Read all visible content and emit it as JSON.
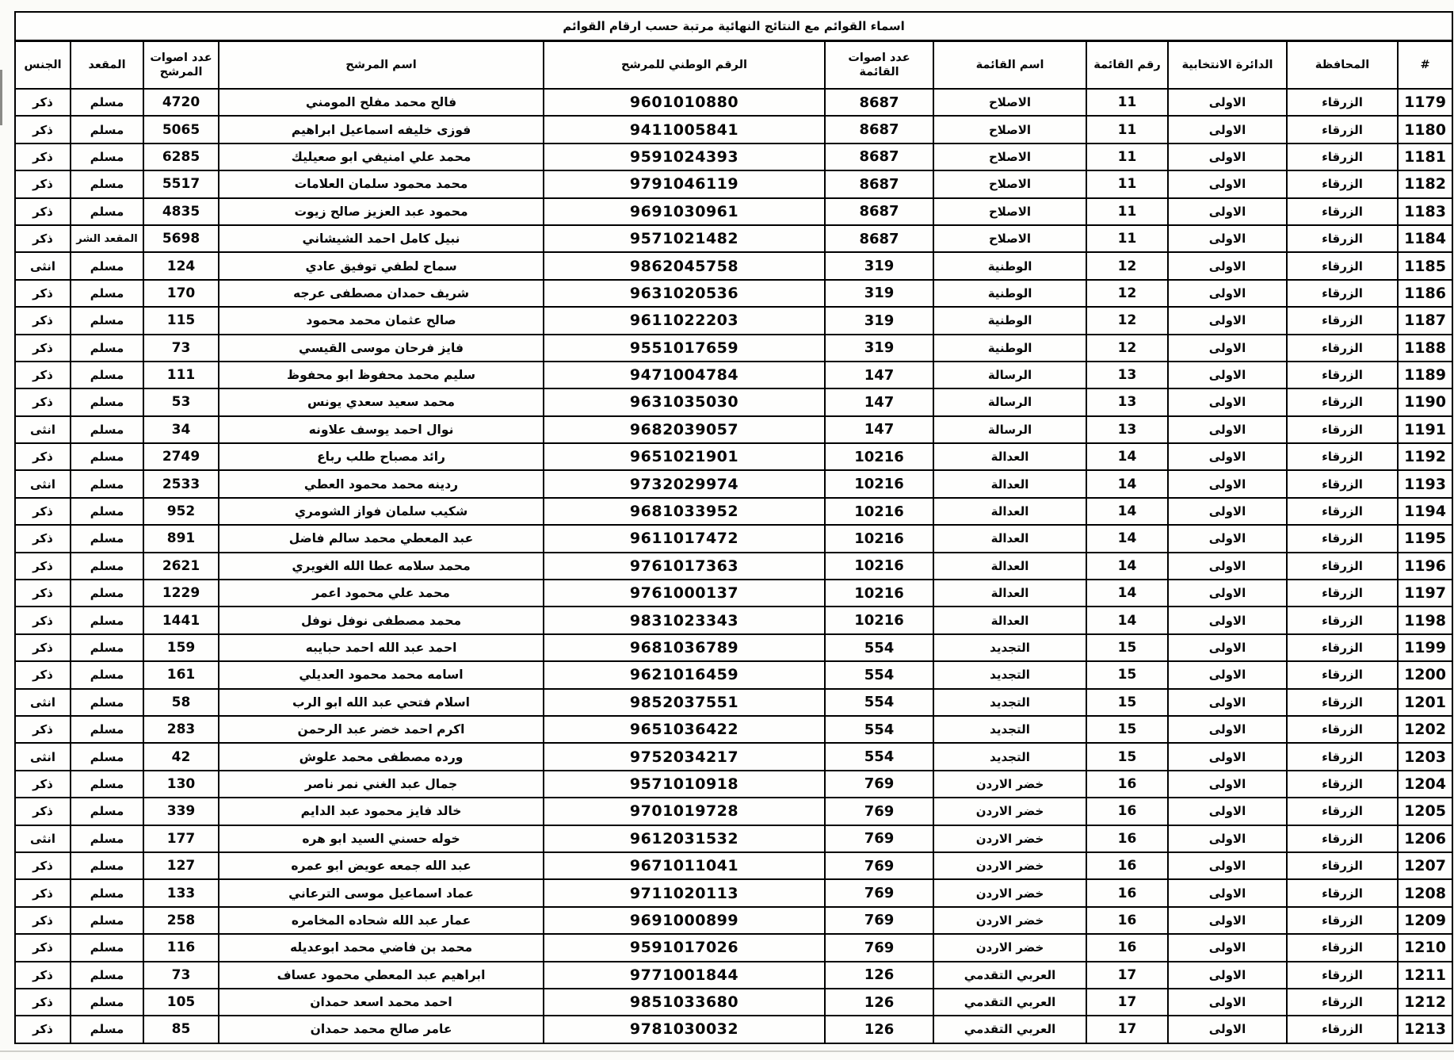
{
  "title": "اسماء القوائم مع النتائج النهائية مرتبة حسب ارقام القوائم",
  "columns": [
    {
      "key": "num",
      "label": "#"
    },
    {
      "key": "governorate",
      "label": "المحافظة"
    },
    {
      "key": "district",
      "label": "الدائرة الانتخابية"
    },
    {
      "key": "list_number",
      "label": "رقم القائمة"
    },
    {
      "key": "list_name",
      "label": "اسم القائمة"
    },
    {
      "key": "list_votes",
      "label": "عدد اصوات القائمة"
    },
    {
      "key": "national_id",
      "label": "الرقم الوطني للمرشح"
    },
    {
      "key": "candidate_name",
      "label": "اسم المرشح"
    },
    {
      "key": "candidate_votes",
      "label": "عدد اصوات المرشح"
    },
    {
      "key": "seat",
      "label": "المقعد"
    },
    {
      "key": "gender",
      "label": "الجنس"
    }
  ],
  "rows": [
    [
      "1179",
      "الزرقاء",
      "الاولى",
      "11",
      "الاصلاح",
      "8687",
      "9601010880",
      "فالح محمد مفلح المومني",
      "4720",
      "مسلم",
      "ذكر"
    ],
    [
      "1180",
      "الزرقاء",
      "الاولى",
      "11",
      "الاصلاح",
      "8687",
      "9411005841",
      "فوزى خليفه اسماعيل ابراهيم",
      "5065",
      "مسلم",
      "ذكر"
    ],
    [
      "1181",
      "الزرقاء",
      "الاولى",
      "11",
      "الاصلاح",
      "8687",
      "9591024393",
      "محمد علي امنيفي ابو صعيليك",
      "6285",
      "مسلم",
      "ذكر"
    ],
    [
      "1182",
      "الزرقاء",
      "الاولى",
      "11",
      "الاصلاح",
      "8687",
      "9791046119",
      "محمد محمود سلمان العلامات",
      "5517",
      "مسلم",
      "ذكر"
    ],
    [
      "1183",
      "الزرقاء",
      "الاولى",
      "11",
      "الاصلاح",
      "8687",
      "9691030961",
      "محمود عبد العزيز صالح زيوت",
      "4835",
      "مسلم",
      "ذكر"
    ],
    [
      "1184",
      "الزرقاء",
      "الاولى",
      "11",
      "الاصلاح",
      "8687",
      "9571021482",
      "نبيل كامل احمد الشيشاني",
      "5698",
      "المقعد الشر",
      "ذكر"
    ],
    [
      "1185",
      "الزرقاء",
      "الاولى",
      "12",
      "الوطنية",
      "319",
      "9862045758",
      "سماح لطفي توفيق عادي",
      "124",
      "مسلم",
      "انثى"
    ],
    [
      "1186",
      "الزرقاء",
      "الاولى",
      "12",
      "الوطنية",
      "319",
      "9631020536",
      "شريف حمدان مصطفى عرجه",
      "170",
      "مسلم",
      "ذكر"
    ],
    [
      "1187",
      "الزرقاء",
      "الاولى",
      "12",
      "الوطنية",
      "319",
      "9611022203",
      "صالح عثمان محمد محمود",
      "115",
      "مسلم",
      "ذكر"
    ],
    [
      "1188",
      "الزرقاء",
      "الاولى",
      "12",
      "الوطنية",
      "319",
      "9551017659",
      "فايز فرحان موسى القيسي",
      "73",
      "مسلم",
      "ذكر"
    ],
    [
      "1189",
      "الزرقاء",
      "الاولى",
      "13",
      "الرسالة",
      "147",
      "9471004784",
      "سليم محمد محفوظ ابو محفوظ",
      "111",
      "مسلم",
      "ذكر"
    ],
    [
      "1190",
      "الزرقاء",
      "الاولى",
      "13",
      "الرسالة",
      "147",
      "9631035030",
      "محمد سعيد سعدي يونس",
      "53",
      "مسلم",
      "ذكر"
    ],
    [
      "1191",
      "الزرقاء",
      "الاولى",
      "13",
      "الرسالة",
      "147",
      "9682039057",
      "نوال احمد يوسف علاونه",
      "34",
      "مسلم",
      "انثى"
    ],
    [
      "1192",
      "الزرقاء",
      "الاولى",
      "14",
      "العدالة",
      "10216",
      "9651021901",
      "رائد مصباح طلب رباع",
      "2749",
      "مسلم",
      "ذكر"
    ],
    [
      "1193",
      "الزرقاء",
      "الاولى",
      "14",
      "العدالة",
      "10216",
      "9732029974",
      "ردينه محمد محمود العطي",
      "2533",
      "مسلم",
      "انثى"
    ],
    [
      "1194",
      "الزرقاء",
      "الاولى",
      "14",
      "العدالة",
      "10216",
      "9681033952",
      "شكيب سلمان فواز الشومري",
      "952",
      "مسلم",
      "ذكر"
    ],
    [
      "1195",
      "الزرقاء",
      "الاولى",
      "14",
      "العدالة",
      "10216",
      "9611017472",
      "عبد المعطي محمد سالم فاضل",
      "891",
      "مسلم",
      "ذكر"
    ],
    [
      "1196",
      "الزرقاء",
      "الاولى",
      "14",
      "العدالة",
      "10216",
      "9761017363",
      "محمد سلامه عطا الله الغويري",
      "2621",
      "مسلم",
      "ذكر"
    ],
    [
      "1197",
      "الزرقاء",
      "الاولى",
      "14",
      "العدالة",
      "10216",
      "9761000137",
      "محمد علي محمود اعمر",
      "1229",
      "مسلم",
      "ذكر"
    ],
    [
      "1198",
      "الزرقاء",
      "الاولى",
      "14",
      "العدالة",
      "10216",
      "9831023343",
      "محمد مصطفى نوفل نوفل",
      "1441",
      "مسلم",
      "ذكر"
    ],
    [
      "1199",
      "الزرقاء",
      "الاولى",
      "15",
      "التجديد",
      "554",
      "9681036789",
      "احمد عبد الله احمد حبايبه",
      "159",
      "مسلم",
      "ذكر"
    ],
    [
      "1200",
      "الزرقاء",
      "الاولى",
      "15",
      "التجديد",
      "554",
      "9621016459",
      "اسامه محمد محمود العديلي",
      "161",
      "مسلم",
      "ذكر"
    ],
    [
      "1201",
      "الزرقاء",
      "الاولى",
      "15",
      "التجديد",
      "554",
      "9852037551",
      "اسلام فتحي عبد الله ابو الرب",
      "58",
      "مسلم",
      "انثى"
    ],
    [
      "1202",
      "الزرقاء",
      "الاولى",
      "15",
      "التجديد",
      "554",
      "9651036422",
      "اكرم احمد خضر عبد الرحمن",
      "283",
      "مسلم",
      "ذكر"
    ],
    [
      "1203",
      "الزرقاء",
      "الاولى",
      "15",
      "التجديد",
      "554",
      "9752034217",
      "ورده مصطفى محمد علوش",
      "42",
      "مسلم",
      "انثى"
    ],
    [
      "1204",
      "الزرقاء",
      "الاولى",
      "16",
      "خضر الاردن",
      "769",
      "9571010918",
      "جمال عبد الغني نمر ناصر",
      "130",
      "مسلم",
      "ذكر"
    ],
    [
      "1205",
      "الزرقاء",
      "الاولى",
      "16",
      "خضر الاردن",
      "769",
      "9701019728",
      "خالد فايز محمود عبد الدايم",
      "339",
      "مسلم",
      "ذكر"
    ],
    [
      "1206",
      "الزرقاء",
      "الاولى",
      "16",
      "خضر الاردن",
      "769",
      "9612031532",
      "خوله حسني السيد ابو هره",
      "177",
      "مسلم",
      "انثى"
    ],
    [
      "1207",
      "الزرقاء",
      "الاولى",
      "16",
      "خضر الاردن",
      "769",
      "9671011041",
      "عبد الله جمعه عويض ابو عمره",
      "127",
      "مسلم",
      "ذكر"
    ],
    [
      "1208",
      "الزرقاء",
      "الاولى",
      "16",
      "خضر الاردن",
      "769",
      "9711020113",
      "عماد اسماعيل موسى الترعاني",
      "133",
      "مسلم",
      "ذكر"
    ],
    [
      "1209",
      "الزرقاء",
      "الاولى",
      "16",
      "خضر الاردن",
      "769",
      "9691000899",
      "عمار عبد الله شحاده المخامره",
      "258",
      "مسلم",
      "ذكر"
    ],
    [
      "1210",
      "الزرقاء",
      "الاولى",
      "16",
      "خضر الاردن",
      "769",
      "9591017026",
      "محمد بن فاضي محمد ابوعديله",
      "116",
      "مسلم",
      "ذكر"
    ],
    [
      "1211",
      "الزرقاء",
      "الاولى",
      "17",
      "العربي التقدمي",
      "126",
      "9771001844",
      "ابراهيم عبد المعطي محمود عساف",
      "73",
      "مسلم",
      "ذكر"
    ],
    [
      "1212",
      "الزرقاء",
      "الاولى",
      "17",
      "العربي التقدمي",
      "126",
      "9851033680",
      "احمد محمد اسعد حمدان",
      "105",
      "مسلم",
      "ذكر"
    ],
    [
      "1213",
      "الزرقاء",
      "الاولى",
      "17",
      "العربي التقدمي",
      "126",
      "9781030032",
      "عامر صالح محمد حمدان",
      "85",
      "مسلم",
      "ذكر"
    ]
  ]
}
